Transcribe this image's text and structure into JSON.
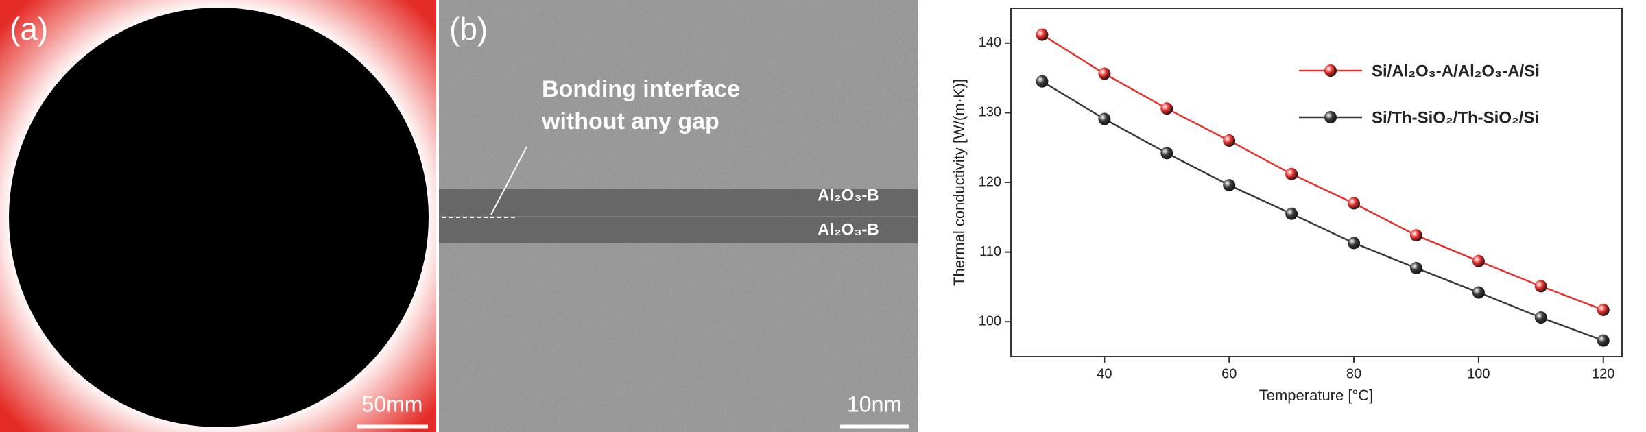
{
  "panel_a": {
    "label": "(a)",
    "scale_bar": "50mm"
  },
  "panel_b": {
    "label": "(b)",
    "annotation": [
      "Bonding interface",
      "without any gap"
    ],
    "layer_labels": [
      "Al₂O₃-B",
      "Al₂O₃-B"
    ],
    "scale_bar": "10nm"
  },
  "chart_data": {
    "type": "line",
    "x": [
      30,
      40,
      50,
      60,
      70,
      80,
      90,
      100,
      110,
      120
    ],
    "series": [
      {
        "name": "Si/Al₂O₃-A/Al₂O₃-A/Si",
        "color": "#e8302c",
        "values": [
          141.2,
          135.6,
          130.6,
          126.0,
          121.2,
          117.0,
          112.4,
          108.7,
          105.1,
          101.7
        ]
      },
      {
        "name": "Si/Th-SiO₂/Th-SiO₂/Si",
        "color": "#3a3a3a",
        "values": [
          134.5,
          129.1,
          124.2,
          119.6,
          115.5,
          111.3,
          107.7,
          104.2,
          100.6,
          97.3
        ]
      }
    ],
    "xlabel": "Temperature [°C]",
    "ylabel": "Thermal conductivity [W/(m·K)]",
    "xlim": [
      25,
      123
    ],
    "xticks": [
      40,
      60,
      80,
      100,
      120
    ],
    "ylim": [
      95,
      145
    ],
    "yticks": [
      100,
      110,
      120,
      130,
      140
    ],
    "grid": false,
    "legend": "upper right"
  }
}
